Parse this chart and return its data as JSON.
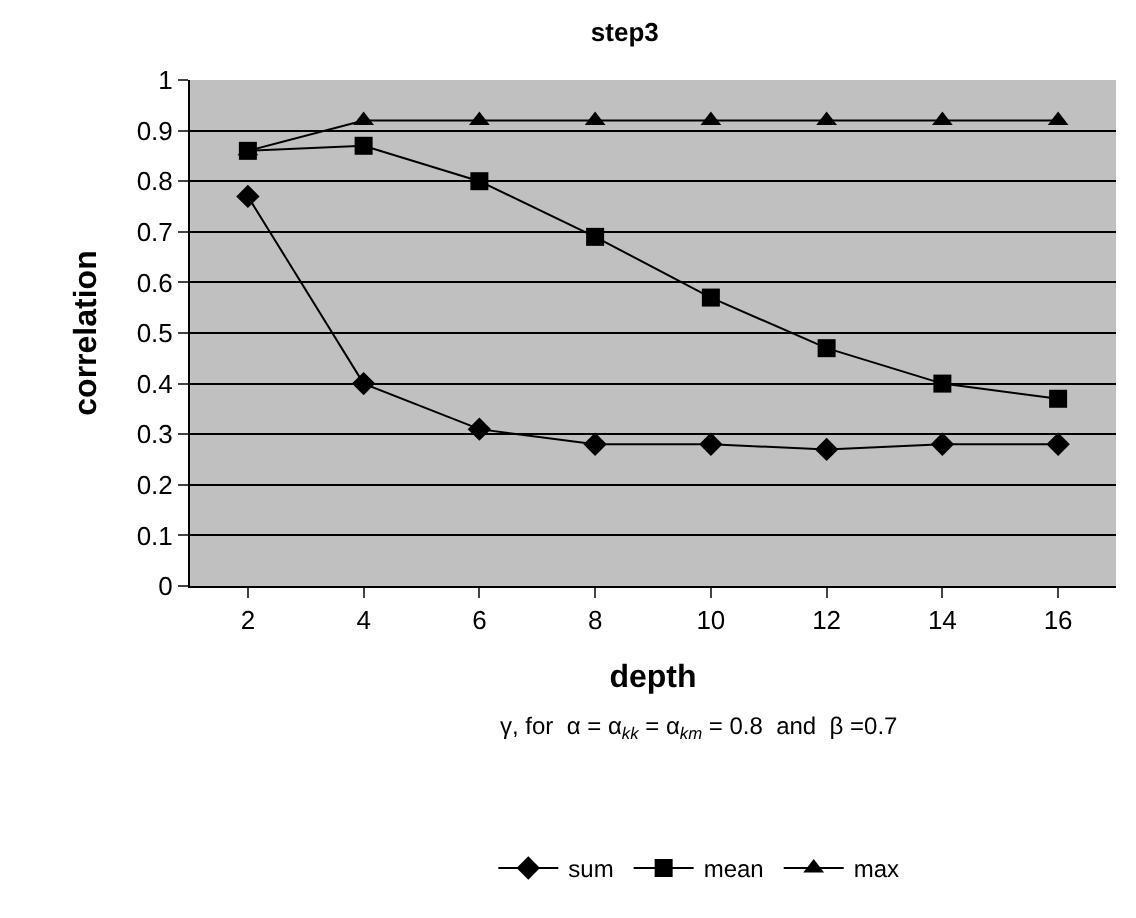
{
  "chart_data": {
    "type": "line",
    "title": "step3",
    "xlabel": "depth",
    "ylabel": "correlation",
    "categories": [
      "2",
      "4",
      "6",
      "8",
      "10",
      "12",
      "14",
      "16"
    ],
    "series": [
      {
        "name": "sum",
        "color": "#000000",
        "marker": "diamond",
        "values": [
          0.77,
          0.4,
          0.31,
          0.28,
          0.28,
          0.27,
          0.28,
          0.28
        ]
      },
      {
        "name": "mean",
        "color": "#000000",
        "marker": "square",
        "values": [
          0.86,
          0.87,
          0.8,
          0.69,
          0.57,
          0.47,
          0.4,
          0.37
        ]
      },
      {
        "name": "max",
        "color": "#000000",
        "marker": "triangle",
        "values": [
          0.86,
          0.92,
          0.92,
          0.92,
          0.92,
          0.92,
          0.92,
          0.92
        ]
      }
    ],
    "ylim": [
      0,
      1
    ],
    "yticks": [
      0,
      0.1,
      0.2,
      0.3,
      0.4,
      0.5,
      0.6,
      0.7,
      0.8,
      0.9,
      1
    ],
    "grid": "y",
    "legend": "bottom",
    "line_style": "solid",
    "annotations": [
      "γ, for  α = α$_{kk}$ = α$_{km}$ = 0.8  and  β =0.7"
    ]
  }
}
